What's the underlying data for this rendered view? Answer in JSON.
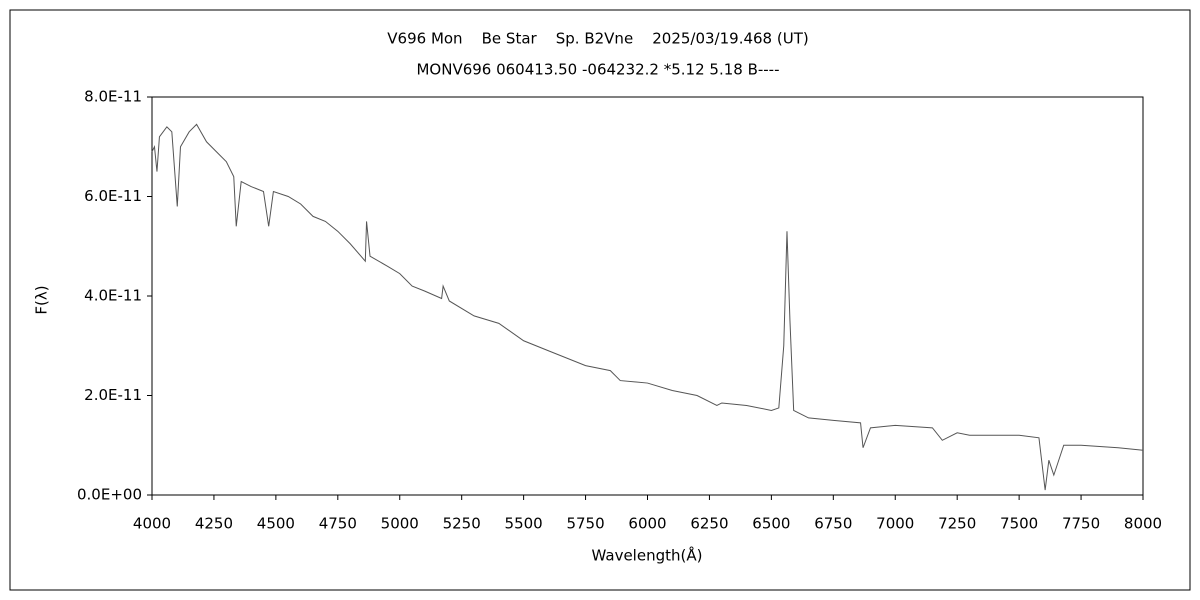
{
  "chart_data": {
    "type": "line",
    "title": "V696 Mon    Be Star    Sp. B2Vne    2025/03/19.468 (UT)",
    "subtitle": "MONV696 060413.50 -064232.2 *5.12 5.18 B----",
    "x_label": "Wavelength(Å)",
    "y_label": "F(λ)",
    "xlim": [
      4000,
      8000
    ],
    "xticks": [
      4000,
      4250,
      4500,
      4750,
      5000,
      5250,
      5500,
      5750,
      6000,
      6250,
      6500,
      6750,
      7000,
      7250,
      7500,
      7750,
      8000
    ],
    "ylim": [
      0,
      8e-11
    ],
    "yticks": [
      {
        "value": 0,
        "label": "0.0E+00"
      },
      {
        "value": 2e-11,
        "label": "2.0E-11"
      },
      {
        "value": 4e-11,
        "label": "4.0E-11"
      },
      {
        "value": 6e-11,
        "label": "6.0E-11"
      },
      {
        "value": 8e-11,
        "label": "8.0E-11"
      }
    ],
    "x": [
      4000,
      4010,
      4020,
      4030,
      4060,
      4080,
      4102,
      4115,
      4150,
      4180,
      4220,
      4260,
      4300,
      4330,
      4340,
      4360,
      4400,
      4450,
      4471,
      4490,
      4550,
      4600,
      4650,
      4700,
      4750,
      4800,
      4861,
      4866,
      4880,
      4950,
      5000,
      5050,
      5100,
      5169,
      5175,
      5200,
      5300,
      5400,
      5500,
      5600,
      5750,
      5850,
      5890,
      6000,
      6100,
      6200,
      6280,
      6300,
      6400,
      6500,
      6530,
      6550,
      6563,
      6575,
      6590,
      6650,
      6750,
      6860,
      6870,
      6900,
      7000,
      7150,
      7190,
      7250,
      7300,
      7500,
      7580,
      7605,
      7620,
      7640,
      7680,
      7750,
      7900,
      8000
    ],
    "series": [
      {
        "name": "F(λ)",
        "color": "#555555",
        "values": [
          6.9e-11,
          7e-11,
          6.5e-11,
          7.2e-11,
          7.4e-11,
          7.3e-11,
          5.8e-11,
          7e-11,
          7.3e-11,
          7.45e-11,
          7.1e-11,
          6.9e-11,
          6.7e-11,
          6.4e-11,
          5.4e-11,
          6.3e-11,
          6.2e-11,
          6.1e-11,
          5.4e-11,
          6.1e-11,
          6e-11,
          5.85e-11,
          5.6e-11,
          5.5e-11,
          5.3e-11,
          5.05e-11,
          4.7e-11,
          5.5e-11,
          4.8e-11,
          4.6e-11,
          4.45e-11,
          4.2e-11,
          4.1e-11,
          3.95e-11,
          4.2e-11,
          3.9e-11,
          3.6e-11,
          3.45e-11,
          3.1e-11,
          2.9e-11,
          2.6e-11,
          2.5e-11,
          2.3e-11,
          2.25e-11,
          2.1e-11,
          2e-11,
          1.8e-11,
          1.85e-11,
          1.8e-11,
          1.7e-11,
          1.75e-11,
          3e-11,
          5.3e-11,
          3.5e-11,
          1.7e-11,
          1.55e-11,
          1.5e-11,
          1.45e-11,
          9.5e-12,
          1.35e-11,
          1.4e-11,
          1.35e-11,
          1.1e-11,
          1.25e-11,
          1.2e-11,
          1.2e-11,
          1.15e-11,
          1e-12,
          7e-12,
          4e-12,
          1e-11,
          1e-11,
          9.5e-12,
          9e-12
        ]
      }
    ]
  }
}
